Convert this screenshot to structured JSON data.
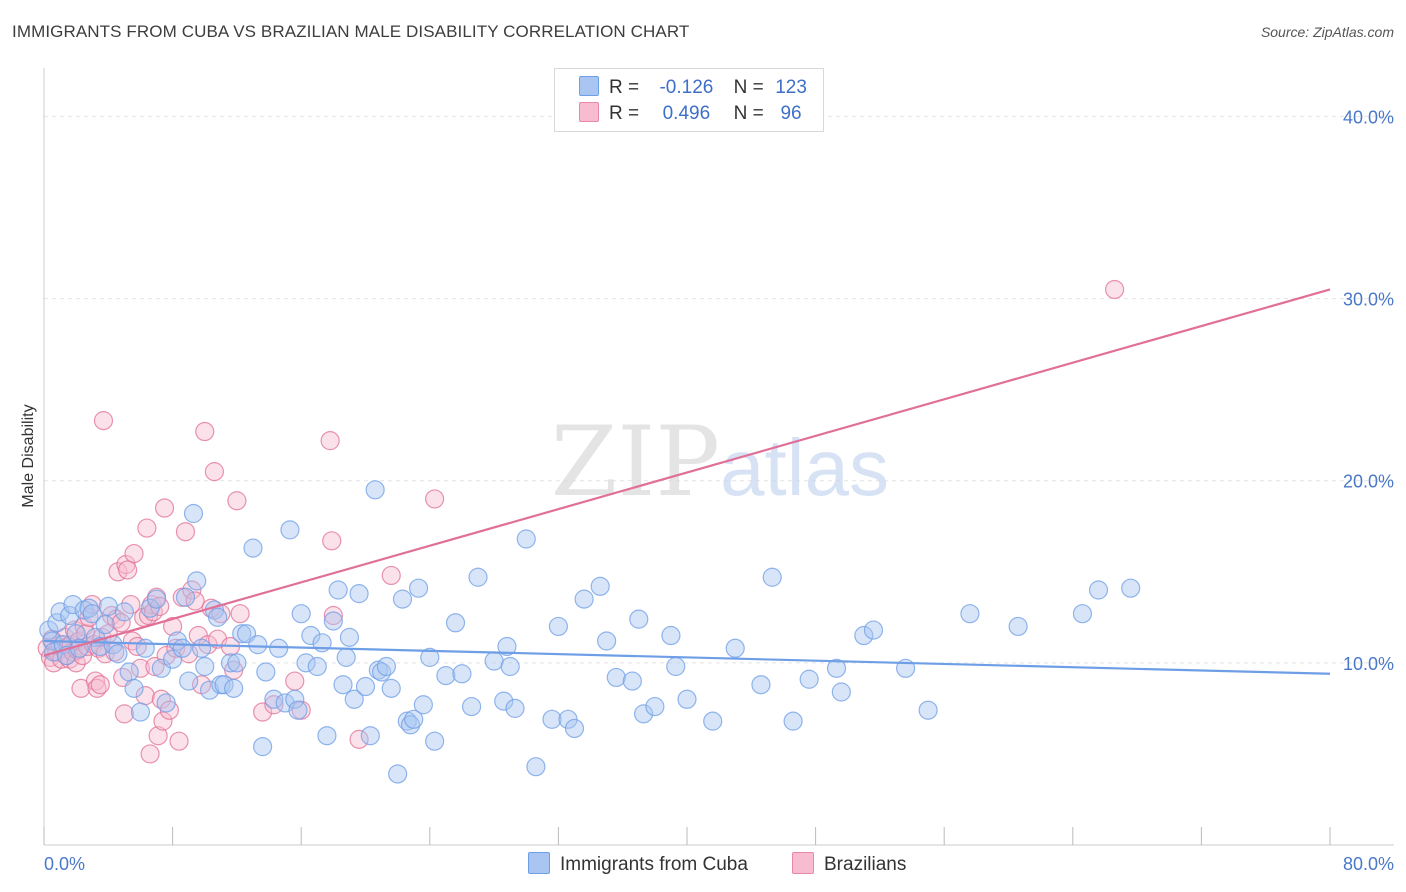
{
  "header": {
    "title": "IMMIGRANTS FROM CUBA VS BRAZILIAN MALE DISABILITY CORRELATION CHART",
    "source": "Source: ZipAtlas.com"
  },
  "watermark": {
    "zip": "ZIP",
    "atlas": "atlas"
  },
  "legend_stats": [
    {
      "r_label": "R =",
      "r_value": "-0.126",
      "n_label": "N =",
      "n_value": "123",
      "color": "#a9c6f2",
      "border": "#6e9ee6"
    },
    {
      "r_label": "R =",
      "r_value": "0.496",
      "n_label": "N =",
      "n_value": "96",
      "color": "#f7bcd0",
      "border": "#ea86a8"
    }
  ],
  "chart_data": {
    "type": "scatter",
    "title": "IMMIGRANTS FROM CUBA VS BRAZILIAN MALE DISABILITY CORRELATION CHART",
    "xlabel": "",
    "ylabel": "Male Disability",
    "xlim": [
      0,
      80
    ],
    "ylim": [
      0,
      42
    ],
    "y_ticks": [
      {
        "value": 10,
        "label": "10.0%"
      },
      {
        "value": 20,
        "label": "20.0%"
      },
      {
        "value": 30,
        "label": "30.0%"
      },
      {
        "value": 40,
        "label": "40.0%"
      }
    ],
    "x_tick_labels": {
      "min": "0.0%",
      "max": "80.0%"
    },
    "grid": true,
    "legend": "bottom",
    "series": [
      {
        "name": "Immigrants from Cuba",
        "color": "#6e9ee6",
        "fill": "#a9c6f2",
        "trend": [
          [
            0,
            11.2
          ],
          [
            80,
            9.4
          ]
        ],
        "points": [
          [
            0.3,
            11.8
          ],
          [
            0.5,
            11.2
          ],
          [
            0.6,
            10.6
          ],
          [
            0.8,
            12.2
          ],
          [
            1.0,
            12.8
          ],
          [
            1.2,
            11.0
          ],
          [
            1.4,
            10.4
          ],
          [
            1.6,
            12.6
          ],
          [
            1.8,
            13.2
          ],
          [
            2.0,
            11.6
          ],
          [
            2.2,
            10.8
          ],
          [
            2.5,
            12.9
          ],
          [
            2.8,
            13.0
          ],
          [
            3.0,
            12.7
          ],
          [
            3.2,
            11.4
          ],
          [
            3.5,
            10.9
          ],
          [
            3.8,
            12.1
          ],
          [
            4.0,
            13.1
          ],
          [
            4.3,
            11.0
          ],
          [
            4.6,
            10.5
          ],
          [
            5.0,
            12.8
          ],
          [
            5.3,
            9.5
          ],
          [
            5.6,
            8.6
          ],
          [
            6.0,
            7.3
          ],
          [
            6.3,
            10.8
          ],
          [
            6.6,
            13.0
          ],
          [
            7.0,
            13.5
          ],
          [
            7.3,
            9.7
          ],
          [
            7.6,
            7.8
          ],
          [
            8.0,
            10.2
          ],
          [
            8.3,
            11.2
          ],
          [
            8.6,
            10.8
          ],
          [
            8.8,
            13.6
          ],
          [
            9.0,
            9.0
          ],
          [
            9.3,
            18.2
          ],
          [
            9.5,
            14.5
          ],
          [
            9.8,
            10.8
          ],
          [
            10.0,
            9.8
          ],
          [
            10.3,
            8.5
          ],
          [
            10.6,
            12.9
          ],
          [
            10.8,
            12.5
          ],
          [
            11.0,
            8.8
          ],
          [
            11.2,
            8.8
          ],
          [
            11.6,
            10.0
          ],
          [
            11.8,
            8.6
          ],
          [
            12.0,
            10.0
          ],
          [
            12.3,
            11.6
          ],
          [
            12.6,
            11.6
          ],
          [
            13.0,
            16.3
          ],
          [
            13.3,
            11.0
          ],
          [
            13.6,
            5.4
          ],
          [
            13.8,
            9.5
          ],
          [
            14.3,
            8.0
          ],
          [
            14.6,
            10.8
          ],
          [
            15.0,
            7.8
          ],
          [
            15.3,
            17.3
          ],
          [
            15.6,
            8.0
          ],
          [
            15.8,
            7.4
          ],
          [
            16.0,
            12.7
          ],
          [
            16.3,
            10.0
          ],
          [
            16.6,
            11.5
          ],
          [
            17.0,
            9.8
          ],
          [
            17.3,
            11.1
          ],
          [
            17.6,
            6.0
          ],
          [
            18.0,
            12.3
          ],
          [
            18.3,
            14.0
          ],
          [
            18.6,
            8.8
          ],
          [
            18.8,
            10.3
          ],
          [
            19.0,
            11.4
          ],
          [
            19.3,
            8.0
          ],
          [
            19.6,
            13.8
          ],
          [
            20.0,
            8.7
          ],
          [
            20.3,
            6.0
          ],
          [
            20.6,
            19.5
          ],
          [
            20.8,
            9.6
          ],
          [
            21.0,
            9.5
          ],
          [
            21.3,
            9.8
          ],
          [
            21.6,
            8.6
          ],
          [
            22.0,
            3.9
          ],
          [
            22.3,
            13.5
          ],
          [
            22.6,
            6.8
          ],
          [
            22.8,
            6.6
          ],
          [
            23.0,
            6.9
          ],
          [
            23.3,
            14.1
          ],
          [
            23.6,
            7.7
          ],
          [
            24.0,
            10.3
          ],
          [
            24.3,
            5.7
          ],
          [
            25.0,
            9.3
          ],
          [
            25.6,
            12.2
          ],
          [
            26.0,
            9.4
          ],
          [
            26.6,
            7.6
          ],
          [
            27.0,
            14.7
          ],
          [
            28.0,
            10.1
          ],
          [
            28.6,
            7.9
          ],
          [
            28.8,
            10.9
          ],
          [
            29.0,
            9.8
          ],
          [
            29.3,
            7.5
          ],
          [
            30.0,
            16.8
          ],
          [
            30.6,
            4.3
          ],
          [
            31.6,
            6.9
          ],
          [
            32.0,
            12.0
          ],
          [
            32.6,
            6.9
          ],
          [
            33.0,
            6.4
          ],
          [
            33.6,
            13.5
          ],
          [
            34.6,
            14.2
          ],
          [
            35.0,
            11.2
          ],
          [
            35.6,
            9.2
          ],
          [
            36.6,
            9.0
          ],
          [
            37.0,
            12.4
          ],
          [
            37.3,
            7.2
          ],
          [
            38.0,
            7.6
          ],
          [
            39.0,
            11.5
          ],
          [
            39.3,
            9.8
          ],
          [
            40.0,
            8.0
          ],
          [
            41.6,
            6.8
          ],
          [
            43.0,
            10.8
          ],
          [
            44.6,
            8.8
          ],
          [
            45.3,
            14.7
          ],
          [
            46.6,
            6.8
          ],
          [
            47.6,
            9.1
          ],
          [
            49.3,
            9.7
          ],
          [
            49.6,
            8.4
          ],
          [
            51.0,
            11.5
          ],
          [
            51.6,
            11.8
          ],
          [
            53.6,
            9.7
          ],
          [
            55.0,
            7.4
          ],
          [
            57.6,
            12.7
          ],
          [
            60.6,
            12.0
          ],
          [
            64.6,
            12.7
          ],
          [
            65.6,
            14.0
          ],
          [
            67.6,
            14.1
          ]
        ]
      },
      {
        "name": "Brazilians",
        "color": "#e07097",
        "fill": "#f7bcd0",
        "trend": [
          [
            0,
            10.4
          ],
          [
            80,
            30.5
          ]
        ],
        "points": [
          [
            0.2,
            10.8
          ],
          [
            0.4,
            10.3
          ],
          [
            0.5,
            11.3
          ],
          [
            0.6,
            10.0
          ],
          [
            0.8,
            10.6
          ],
          [
            1.0,
            11.0
          ],
          [
            1.1,
            10.2
          ],
          [
            1.2,
            10.8
          ],
          [
            1.3,
            11.4
          ],
          [
            1.4,
            10.4
          ],
          [
            1.5,
            10.9
          ],
          [
            1.6,
            10.2
          ],
          [
            1.7,
            11.0
          ],
          [
            1.8,
            10.6
          ],
          [
            1.9,
            11.8
          ],
          [
            2.0,
            10.0
          ],
          [
            2.1,
            10.7
          ],
          [
            2.2,
            11.2
          ],
          [
            2.3,
            8.6
          ],
          [
            2.4,
            10.4
          ],
          [
            2.5,
            12.0
          ],
          [
            2.6,
            11.6
          ],
          [
            2.7,
            10.9
          ],
          [
            2.8,
            12.5
          ],
          [
            3.0,
            13.2
          ],
          [
            3.1,
            11.0
          ],
          [
            3.2,
            9.0
          ],
          [
            3.3,
            8.6
          ],
          [
            3.4,
            10.8
          ],
          [
            3.5,
            8.8
          ],
          [
            3.6,
            11.4
          ],
          [
            3.7,
            23.3
          ],
          [
            3.8,
            10.5
          ],
          [
            4.0,
            11.6
          ],
          [
            4.2,
            12.6
          ],
          [
            4.4,
            10.6
          ],
          [
            4.5,
            12.4
          ],
          [
            4.6,
            15.0
          ],
          [
            4.8,
            12.2
          ],
          [
            4.9,
            9.2
          ],
          [
            5.0,
            7.2
          ],
          [
            5.1,
            15.4
          ],
          [
            5.2,
            15.1
          ],
          [
            5.4,
            13.2
          ],
          [
            5.5,
            11.2
          ],
          [
            5.6,
            16.0
          ],
          [
            5.8,
            10.9
          ],
          [
            6.0,
            9.7
          ],
          [
            6.2,
            12.5
          ],
          [
            6.3,
            8.2
          ],
          [
            6.4,
            17.4
          ],
          [
            6.5,
            12.6
          ],
          [
            6.6,
            5.0
          ],
          [
            6.7,
            13.2
          ],
          [
            6.8,
            12.8
          ],
          [
            6.9,
            9.8
          ],
          [
            7.0,
            13.6
          ],
          [
            7.1,
            6.0
          ],
          [
            7.2,
            13.1
          ],
          [
            7.3,
            8.0
          ],
          [
            7.4,
            6.8
          ],
          [
            7.5,
            18.5
          ],
          [
            7.6,
            10.4
          ],
          [
            7.8,
            7.4
          ],
          [
            8.0,
            12.0
          ],
          [
            8.2,
            10.8
          ],
          [
            8.4,
            5.7
          ],
          [
            8.6,
            13.6
          ],
          [
            8.8,
            17.2
          ],
          [
            9.0,
            10.5
          ],
          [
            9.2,
            14.0
          ],
          [
            9.4,
            13.4
          ],
          [
            9.6,
            11.5
          ],
          [
            9.8,
            8.8
          ],
          [
            10.0,
            22.7
          ],
          [
            10.2,
            11.0
          ],
          [
            10.4,
            13.0
          ],
          [
            10.6,
            20.5
          ],
          [
            10.8,
            11.3
          ],
          [
            11.0,
            12.7
          ],
          [
            11.6,
            10.9
          ],
          [
            11.8,
            9.6
          ],
          [
            12.0,
            18.9
          ],
          [
            12.2,
            12.7
          ],
          [
            13.6,
            7.3
          ],
          [
            14.3,
            7.7
          ],
          [
            15.6,
            9.0
          ],
          [
            16.0,
            7.4
          ],
          [
            17.8,
            22.2
          ],
          [
            17.9,
            16.7
          ],
          [
            18.0,
            12.6
          ],
          [
            19.6,
            5.8
          ],
          [
            21.6,
            14.8
          ],
          [
            24.3,
            19.0
          ],
          [
            66.6,
            30.5
          ]
        ]
      }
    ]
  }
}
